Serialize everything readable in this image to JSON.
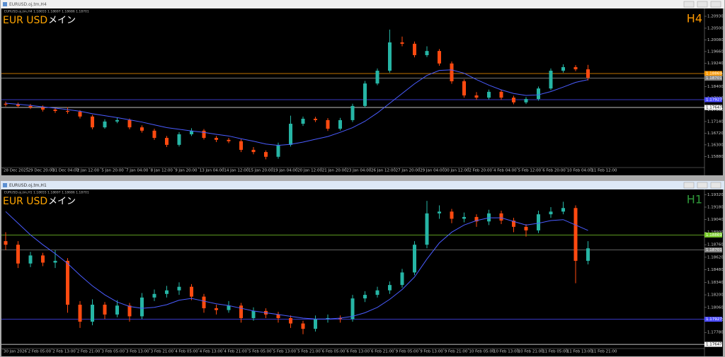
{
  "windows": [
    {
      "title": "EURUSD.oj,tm,H4",
      "info": "EURUSD.oj,tm,H4  1.18655 1.18697 1.18686 1.18701"
    },
    {
      "title": "EURUSD.oj,tm,H1",
      "info": "EURUSD.oj,tm,H1  1.18655 1.18697 1.18686 1.18701"
    }
  ],
  "chart_data": [
    {
      "type": "candlestick",
      "symbol": "EUR USD",
      "label": "メイン",
      "timeframe": "H4",
      "timeframe_color": "#ff9900",
      "up_color": "#26b5a5",
      "down_color": "#ff4a10",
      "ylim": [
        1.15508,
        1.21058
      ],
      "yticks": [
        {
          "value": 1.2093,
          "label": "1.20930"
        },
        {
          "value": 1.205,
          "label": "1.20500"
        },
        {
          "value": 1.2008,
          "label": "1.20080"
        },
        {
          "value": 1.1966,
          "label": "1.19660"
        },
        {
          "value": 1.1924,
          "label": "1.19240"
        },
        {
          "value": 1.1882,
          "label": "1.18820"
        },
        {
          "value": 1.184,
          "label": "1.18400"
        },
        {
          "value": 1.1798,
          "label": "1.17980"
        },
        {
          "value": 1.1756,
          "label": "1.17560"
        },
        {
          "value": 1.1714,
          "label": "1.17140"
        },
        {
          "value": 1.1672,
          "label": "1.16720"
        },
        {
          "value": 1.163,
          "label": "1.16300"
        },
        {
          "value": 1.1588,
          "label": "1.15880"
        }
      ],
      "xlabels": [
        "28 Dec 2025",
        "29 Dec 20:00",
        "31 Dec 04:00",
        "2 Jan 12:00",
        "5 Jan 20:00",
        "7 Jan 04:00",
        "8 Jan 12:00",
        "9 Jan 20:00",
        "13 Jan 04:00",
        "14 Jan 12:00",
        "15 Jan 20:00",
        "19 Jan 04:00",
        "20 Jan 12:00",
        "21 Jan 20:00",
        "23 Jan 04:00",
        "26 Jan 12:00",
        "27 Jan 20:00",
        "29 Jan 04:00",
        "30 Jan 12:00",
        "2 Feb 20:00",
        "4 Feb 04:00",
        "5 Feb 12:00",
        "6 Feb 20:00",
        "10 Feb 04:00",
        "11 Feb 12:00"
      ],
      "levels": [
        {
          "value": 1.18869,
          "color": "#ff9900"
        },
        {
          "value": 1.18701,
          "color": "#808080"
        },
        {
          "value": 1.17927,
          "color": "#4a4aff"
        },
        {
          "value": 1.17647,
          "color": "#ffffff"
        }
      ],
      "candles": [
        [
          1.1778,
          1.1786,
          1.1768,
          1.1775
        ],
        [
          1.1775,
          1.1782,
          1.1764,
          1.177
        ],
        [
          1.177,
          1.1777,
          1.1759,
          1.1765
        ],
        [
          1.1765,
          1.1772,
          1.175,
          1.1757
        ],
        [
          1.1757,
          1.1764,
          1.1745,
          1.1752
        ],
        [
          1.1752,
          1.1766,
          1.1742,
          1.1749
        ],
        [
          1.1749,
          1.1755,
          1.1725,
          1.1732
        ],
        [
          1.1732,
          1.1738,
          1.1686,
          1.1693
        ],
        [
          1.1693,
          1.1722,
          1.1688,
          1.1714
        ],
        [
          1.1714,
          1.1728,
          1.1708,
          1.1719
        ],
        [
          1.1719,
          1.1725,
          1.1686,
          1.1693
        ],
        [
          1.1693,
          1.17,
          1.1674,
          1.1681
        ],
        [
          1.1681,
          1.1688,
          1.1648,
          1.1655
        ],
        [
          1.1655,
          1.1662,
          1.1622,
          1.163
        ],
        [
          1.163,
          1.1676,
          1.1624,
          1.1668
        ],
        [
          1.1668,
          1.169,
          1.1662,
          1.1681
        ],
        [
          1.1681,
          1.1687,
          1.1649,
          1.1655
        ],
        [
          1.1655,
          1.1662,
          1.164,
          1.1648
        ],
        [
          1.1648,
          1.1655,
          1.1636,
          1.1643
        ],
        [
          1.1643,
          1.165,
          1.1604,
          1.1612
        ],
        [
          1.1612,
          1.1622,
          1.1596,
          1.1604
        ],
        [
          1.1604,
          1.161,
          1.1578,
          1.1587
        ],
        [
          1.1587,
          1.1638,
          1.158,
          1.163
        ],
        [
          1.163,
          1.1735,
          1.1624,
          1.1706
        ],
        [
          1.1706,
          1.1732,
          1.1698,
          1.1724
        ],
        [
          1.1724,
          1.1731,
          1.1712,
          1.1719
        ],
        [
          1.1719,
          1.1726,
          1.168,
          1.1688
        ],
        [
          1.1688,
          1.1727,
          1.1682,
          1.1719
        ],
        [
          1.1719,
          1.1778,
          1.1712,
          1.177
        ],
        [
          1.177,
          1.186,
          1.1764,
          1.1851
        ],
        [
          1.1851,
          1.1905,
          1.1845,
          1.1897
        ],
        [
          1.1897,
          1.2045,
          1.189,
          1.1999
        ],
        [
          1.1999,
          1.202,
          1.1985,
          1.1994
        ],
        [
          1.1994,
          1.2002,
          1.1945,
          1.1953
        ],
        [
          1.1953,
          1.1985,
          1.1946,
          1.1968
        ],
        [
          1.1968,
          1.1975,
          1.1915,
          1.1923
        ],
        [
          1.1923,
          1.193,
          1.185,
          1.1859
        ],
        [
          1.1859,
          1.1866,
          1.18,
          1.1808
        ],
        [
          1.1808,
          1.182,
          1.1792,
          1.18
        ],
        [
          1.18,
          1.1829,
          1.1794,
          1.1821
        ],
        [
          1.1821,
          1.1828,
          1.1792,
          1.18
        ],
        [
          1.18,
          1.1807,
          1.1776,
          1.1783
        ],
        [
          1.1783,
          1.1802,
          1.1777,
          1.1795
        ],
        [
          1.1795,
          1.184,
          1.1789,
          1.1833
        ],
        [
          1.1833,
          1.1905,
          1.1827,
          1.1897
        ],
        [
          1.1897,
          1.192,
          1.189,
          1.191
        ],
        [
          1.191,
          1.1917,
          1.1895,
          1.1902
        ],
        [
          1.1902,
          1.1918,
          1.1862,
          1.1872
        ]
      ],
      "ma": {
        "color": "#4a5cff",
        "values": [
          1.178,
          1.1776,
          1.1772,
          1.1767,
          1.1762,
          1.1757,
          1.1751,
          1.1742,
          1.1735,
          1.1728,
          1.172,
          1.1712,
          1.1702,
          1.1692,
          1.1686,
          1.168,
          1.1675,
          1.1668,
          1.1662,
          1.1652,
          1.1643,
          1.1633,
          1.1628,
          1.1632,
          1.164,
          1.165,
          1.166,
          1.1675,
          1.1692,
          1.1715,
          1.1745,
          1.178,
          1.1815,
          1.185,
          1.188,
          1.1898,
          1.19,
          1.1888,
          1.1865,
          1.1845,
          1.1828,
          1.1815,
          1.1808,
          1.181,
          1.1822,
          1.1838,
          1.1855,
          1.1865
        ]
      }
    },
    {
      "type": "candlestick",
      "symbol": "EUR USD",
      "label": "メイン",
      "timeframe": "H1",
      "timeframe_color": "#2f9a3a",
      "up_color": "#26b5a5",
      "down_color": "#ff4a10",
      "ylim": [
        1.17624,
        1.1933
      ],
      "yticks": [
        {
          "value": 1.1932,
          "label": "1.19320"
        },
        {
          "value": 1.1918,
          "label": "1.19180"
        },
        {
          "value": 1.1904,
          "label": "1.19040"
        },
        {
          "value": 1.189,
          "label": "1.18900"
        },
        {
          "value": 1.1876,
          "label": "1.18760"
        },
        {
          "value": 1.1862,
          "label": "1.18620"
        },
        {
          "value": 1.1848,
          "label": "1.18480"
        },
        {
          "value": 1.1834,
          "label": "1.18340"
        },
        {
          "value": 1.182,
          "label": "1.18200"
        },
        {
          "value": 1.1806,
          "label": "1.18060"
        },
        {
          "value": 1.1792,
          "label": "1.17920"
        },
        {
          "value": 1.1778,
          "label": "1.17780"
        }
      ],
      "xlabels": [
        "30 Jan 2026",
        "2 Feb 05:00",
        "2 Feb 13:00",
        "2 Feb 21:00",
        "3 Feb 05:00",
        "3 Feb 13:00",
        "3 Feb 21:00",
        "4 Feb 05:00",
        "4 Feb 13:00",
        "4 Feb 21:00",
        "5 Feb 05:00",
        "5 Feb 13:00",
        "5 Feb 21:00",
        "6 Feb 05:00",
        "6 Feb 13:00",
        "6 Feb 21:00",
        "9 Feb 05:00",
        "9 Feb 13:00",
        "9 Feb 21:00",
        "10 Feb 05:00",
        "10 Feb 13:00",
        "10 Feb 21:00",
        "11 Feb 05:00",
        "11 Feb 13:00",
        "11 Feb 21:00"
      ],
      "levels": [
        {
          "value": 1.18869,
          "color": "#7acc2a"
        },
        {
          "value": 1.18701,
          "color": "#808080"
        },
        {
          "value": 1.17927,
          "color": "#4a4aff"
        },
        {
          "value": 1.17647,
          "color": "#ffffff"
        }
      ],
      "candles": [
        [
          1.188,
          1.189,
          1.187,
          1.1876
        ],
        [
          1.1876,
          1.188,
          1.185,
          1.1855
        ],
        [
          1.1855,
          1.1868,
          1.1851,
          1.1864
        ],
        [
          1.1864,
          1.1867,
          1.1852,
          1.1856
        ],
        [
          1.1856,
          1.187,
          1.185,
          1.1858
        ],
        [
          1.1858,
          1.1861,
          1.18,
          1.1809
        ],
        [
          1.1809,
          1.1813,
          1.1783,
          1.179
        ],
        [
          1.179,
          1.1815,
          1.1786,
          1.1809
        ],
        [
          1.1809,
          1.1812,
          1.1793,
          1.1798
        ],
        [
          1.1798,
          1.1814,
          1.1795,
          1.1808
        ],
        [
          1.1808,
          1.1811,
          1.179,
          1.1796
        ],
        [
          1.1796,
          1.1822,
          1.1793,
          1.1817
        ],
        [
          1.1817,
          1.1826,
          1.1813,
          1.1821
        ],
        [
          1.1821,
          1.183,
          1.1817,
          1.1825
        ],
        [
          1.1825,
          1.1834,
          1.182,
          1.1829
        ],
        [
          1.1829,
          1.1832,
          1.1814,
          1.1818
        ],
        [
          1.1818,
          1.1821,
          1.18,
          1.1805
        ],
        [
          1.1805,
          1.1809,
          1.1798,
          1.1803
        ],
        [
          1.1803,
          1.1813,
          1.18,
          1.1808
        ],
        [
          1.1808,
          1.1811,
          1.1789,
          1.1794
        ],
        [
          1.1794,
          1.1806,
          1.1791,
          1.1802
        ],
        [
          1.1802,
          1.1805,
          1.1794,
          1.1798
        ],
        [
          1.1798,
          1.1801,
          1.1789,
          1.1794
        ],
        [
          1.1794,
          1.1797,
          1.1783,
          1.1788
        ],
        [
          1.1788,
          1.1791,
          1.1776,
          1.1782
        ],
        [
          1.1782,
          1.1797,
          1.1779,
          1.1793
        ],
        [
          1.1793,
          1.1798,
          1.1789,
          1.1794
        ],
        [
          1.1794,
          1.1797,
          1.1789,
          1.1793
        ],
        [
          1.1793,
          1.182,
          1.179,
          1.1816
        ],
        [
          1.1816,
          1.1824,
          1.1812,
          1.182
        ],
        [
          1.182,
          1.1829,
          1.1817,
          1.1825
        ],
        [
          1.1825,
          1.1835,
          1.1821,
          1.1831
        ],
        [
          1.1831,
          1.1849,
          1.1828,
          1.1845
        ],
        [
          1.1845,
          1.188,
          1.1842,
          1.1876
        ],
        [
          1.1876,
          1.1925,
          1.1872,
          1.1911
        ],
        [
          1.1911,
          1.192,
          1.1905,
          1.1913
        ],
        [
          1.1913,
          1.1916,
          1.19,
          1.1905
        ],
        [
          1.1905,
          1.1912,
          1.1901,
          1.1907
        ],
        [
          1.1907,
          1.191,
          1.1896,
          1.1902
        ],
        [
          1.1902,
          1.1915,
          1.1898,
          1.1911
        ],
        [
          1.1911,
          1.1914,
          1.1899,
          1.1903
        ],
        [
          1.1903,
          1.1906,
          1.189,
          1.1896
        ],
        [
          1.1896,
          1.1899,
          1.1885,
          1.1892
        ],
        [
          1.1892,
          1.1914,
          1.1889,
          1.191
        ],
        [
          1.191,
          1.1918,
          1.1906,
          1.1913
        ],
        [
          1.1913,
          1.1924,
          1.191,
          1.1917
        ],
        [
          1.1917,
          1.192,
          1.1833,
          1.1858
        ],
        [
          1.1858,
          1.188,
          1.1854,
          1.1872
        ]
      ],
      "ma": {
        "color": "#4a5cff",
        "values": [
          1.1913,
          1.19,
          1.1887,
          1.1876,
          1.1866,
          1.1855,
          1.1842,
          1.183,
          1.182,
          1.1812,
          1.1807,
          1.1805,
          1.1806,
          1.1809,
          1.1814,
          1.1816,
          1.1813,
          1.181,
          1.1808,
          1.1805,
          1.1802,
          1.18,
          1.1798,
          1.1796,
          1.1794,
          1.1793,
          1.1793,
          1.1794,
          1.1796,
          1.18,
          1.1806,
          1.1815,
          1.1826,
          1.184,
          1.186,
          1.1878,
          1.189,
          1.1898,
          1.1903,
          1.1906,
          1.1906,
          1.1902,
          1.1898,
          1.19,
          1.1903,
          1.1904,
          1.1898,
          1.1892
        ]
      }
    }
  ]
}
